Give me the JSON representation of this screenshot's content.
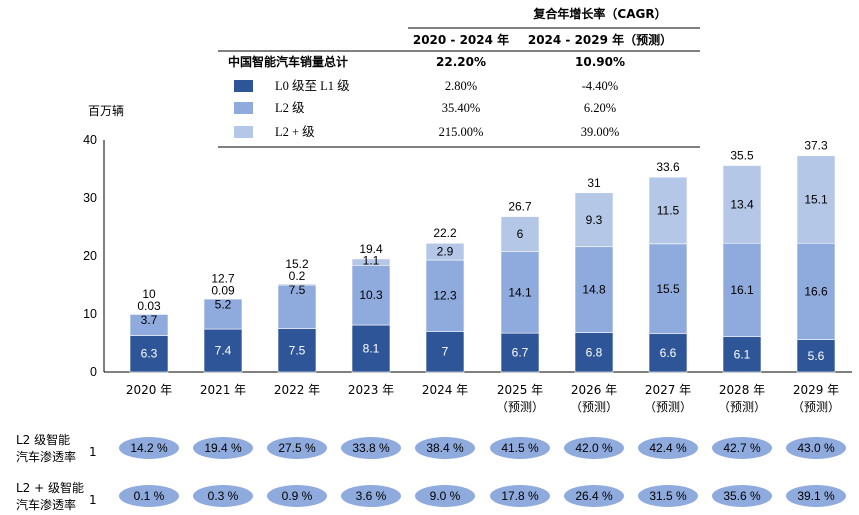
{
  "cagr_table": {
    "title": "复合年增长率（CAGR）",
    "col1": "2020 - 2024 年",
    "col2": "2024 - 2029 年（预测）",
    "rows": [
      {
        "label": "中国智能汽车销量总计",
        "v1": "22.20%",
        "v2": "10.90%",
        "swatch": ""
      },
      {
        "label": "L0 级至 L1 级",
        "v1": "2.80%",
        "v2": "-4.40%",
        "swatch": "#2e5597"
      },
      {
        "label": "L2 级",
        "v1": "35.40%",
        "v2": "6.20%",
        "swatch": "#8faadc"
      },
      {
        "label": "L2 + 级",
        "v1": "215.00%",
        "v2": "39.00%",
        "swatch": "#b4c7e7"
      }
    ]
  },
  "chart_data": {
    "type": "bar",
    "stacked": true,
    "ylabel": "百万辆",
    "ylim": [
      0,
      40
    ],
    "yticks": [
      0,
      10,
      20,
      30,
      40
    ],
    "categories": [
      "2020 年",
      "2021 年",
      "2022 年",
      "2023 年",
      "2024 年",
      "2025 年",
      "2026 年",
      "2027 年",
      "2028 年",
      "2029 年"
    ],
    "category_notes": [
      "",
      "",
      "",
      "",
      "",
      "（预测）",
      "（预测）",
      "（预测）",
      "（预测）",
      "（预测）"
    ],
    "series": [
      {
        "name": "L0 级至 L1 级",
        "color": "#2e5597",
        "label_color": "#ffffff",
        "values": [
          6.3,
          7.4,
          7.5,
          8.1,
          7,
          6.7,
          6.8,
          6.6,
          6.1,
          5.6
        ]
      },
      {
        "name": "L2 级",
        "color": "#8faadc",
        "label_color": "#000000",
        "values": [
          3.7,
          5.2,
          7.5,
          10.3,
          12.3,
          14.1,
          14.8,
          15.5,
          16.1,
          16.6
        ]
      },
      {
        "name": "L2 + 级",
        "color": "#b4c7e7",
        "label_color": "#000000",
        "values": [
          0.03,
          0.09,
          0.2,
          1.1,
          2.9,
          6,
          9.3,
          11.5,
          13.4,
          15.1
        ]
      }
    ],
    "value_labels": [
      [
        "6.3",
        "7.4",
        "7.5",
        "8.1",
        "7",
        "6.7",
        "6.8",
        "6.6",
        "6.1",
        "5.6"
      ],
      [
        "3.7",
        "5.2",
        "7.5",
        "10.3",
        "12.3",
        "14.1",
        "14.8",
        "15.5",
        "16.1",
        "16.6"
      ],
      [
        "0.03",
        "0.09",
        "0.2",
        "1.1",
        "2.9",
        "6",
        "9.3",
        "11.5",
        "13.4",
        "15.1"
      ]
    ],
    "totals": [
      "10",
      "12.7",
      "15.2",
      "19.4",
      "22.2",
      "26.7",
      "31",
      "33.6",
      "35.5",
      "37.3"
    ]
  },
  "penetration": {
    "pill_color": "#8faadc",
    "rows": [
      {
        "label_line1": "L2 级智能",
        "label_line2": "汽车渗透率",
        "sup": "1",
        "values": [
          "14.2 %",
          "19.4 %",
          "27.5 %",
          "33.8 %",
          "38.4 %",
          "41.5 %",
          "42.0 %",
          "42.4 %",
          "42.7 %",
          "43.0 %"
        ]
      },
      {
        "label_line1": "L2 + 级智能",
        "label_line2": "汽车渗透率",
        "sup": "1",
        "values": [
          "0.1 %",
          "0.3 %",
          "0.9 %",
          "3.6 %",
          "9.0 %",
          "17.8 %",
          "26.4 %",
          "31.5 %",
          "35.6 %",
          "39.1 %"
        ]
      }
    ]
  }
}
